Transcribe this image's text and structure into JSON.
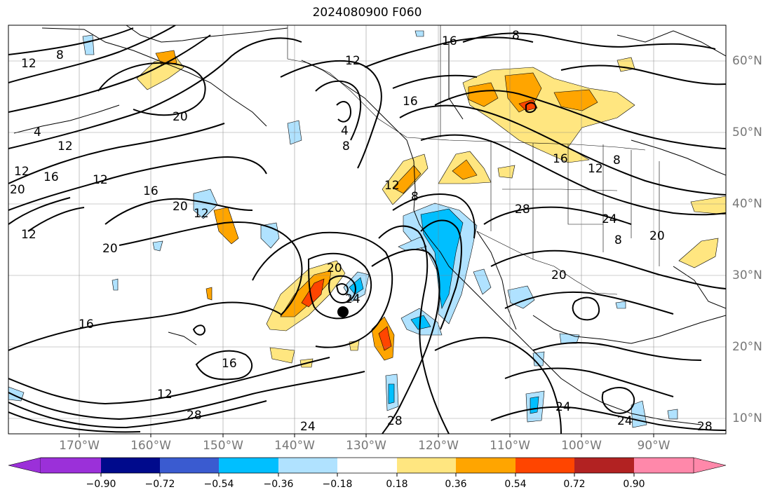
{
  "title": "2024080900 F060",
  "map": {
    "longitude_labels": [
      "170°W",
      "160°W",
      "150°W",
      "140°W",
      "130°W",
      "120°W",
      "110°W",
      "100°W",
      "90°W"
    ],
    "latitude_labels": [
      "60°N",
      "50°N",
      "40°N",
      "30°N",
      "20°N",
      "10°N"
    ],
    "contour_labels": [
      "12",
      "8",
      "16",
      "8",
      "12",
      "20",
      "4",
      "12",
      "16",
      "12",
      "20",
      "12",
      "16",
      "12",
      "20",
      "20",
      "16",
      "16",
      "20",
      "24",
      "8",
      "12",
      "4",
      "8",
      "16",
      "12",
      "28",
      "24",
      "20",
      "20",
      "8",
      "16",
      "12",
      "8",
      "24",
      "28",
      "24",
      "24",
      "28",
      "12",
      "28"
    ]
  },
  "colorbar": {
    "tick_labels": [
      "−0.90",
      "−0.72",
      "−0.54",
      "−0.36",
      "−0.18",
      "0.18",
      "0.36",
      "0.54",
      "0.72",
      "0.90"
    ],
    "colors": [
      "#9b30d9",
      "#000a8c",
      "#3a5bd0",
      "#00bfff",
      "#b0e2ff",
      "#ffffff",
      "#ffe680",
      "#ffa500",
      "#ff4500",
      "#b22222",
      "#ff88aa"
    ]
  }
}
